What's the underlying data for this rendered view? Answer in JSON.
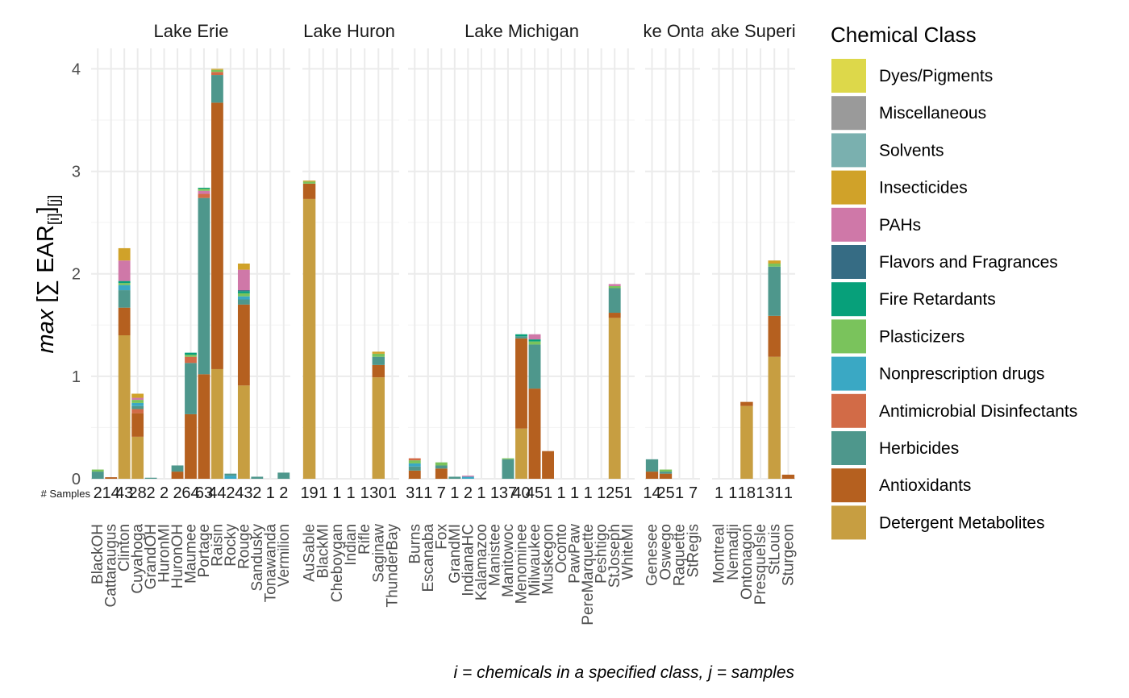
{
  "chart_data": {
    "type": "bar",
    "stacked": true,
    "ylabel": "max [∑ EAR[i]][j]",
    "ylim": [
      0,
      4.2
    ],
    "yticks": [
      0,
      1,
      2,
      3,
      4
    ],
    "grid": true,
    "samples_label": "# Samples",
    "caption": "i = chemicals in a specified class, j = samples",
    "legend_title": "Chemical Class",
    "legend_position": "right",
    "classes": [
      {
        "name": "Dyes/Pigments",
        "color": "#DDD84A"
      },
      {
        "name": "Miscellaneous",
        "color": "#9A9A9A"
      },
      {
        "name": "Solvents",
        "color": "#7AB0AF"
      },
      {
        "name": "Insecticides",
        "color": "#D0A229"
      },
      {
        "name": "PAHs",
        "color": "#CF78A8"
      },
      {
        "name": "Flavors and Fragrances",
        "color": "#366C84"
      },
      {
        "name": "Fire Retardants",
        "color": "#07A07A"
      },
      {
        "name": "Plasticizers",
        "color": "#7AC35C"
      },
      {
        "name": "Nonprescription drugs",
        "color": "#3AA8C4"
      },
      {
        "name": "Antimicrobial Disinfectants",
        "color": "#D26B47"
      },
      {
        "name": "Herbicides",
        "color": "#4E978C"
      },
      {
        "name": "Antioxidants",
        "color": "#B5601F"
      },
      {
        "name": "Detergent Metabolites",
        "color": "#C79E41"
      }
    ],
    "facets": [
      {
        "name": "Lake Erie",
        "title_display": "Lake Erie",
        "sites": [
          {
            "site": "BlackOH",
            "samples": "2",
            "stack": [
              {
                "c": "Herbicides",
                "v": 0.07
              },
              {
                "c": "Plasticizers",
                "v": 0.02
              }
            ]
          },
          {
            "site": "Cattaraugus",
            "samples": "14",
            "stack": [
              {
                "c": "Antioxidants",
                "v": 0.015
              }
            ]
          },
          {
            "site": "Clinton",
            "samples": "43",
            "stack": [
              {
                "c": "Detergent Metabolites",
                "v": 1.4
              },
              {
                "c": "Antioxidants",
                "v": 0.27
              },
              {
                "c": "Herbicides",
                "v": 0.17
              },
              {
                "c": "Nonprescription drugs",
                "v": 0.05
              },
              {
                "c": "Plasticizers",
                "v": 0.02
              },
              {
                "c": "Fire Retardants",
                "v": 0.02
              },
              {
                "c": "PAHs",
                "v": 0.2
              },
              {
                "c": "Insecticides",
                "v": 0.12
              }
            ]
          },
          {
            "site": "Cuyahoga",
            "samples": "28",
            "stack": [
              {
                "c": "Detergent Metabolites",
                "v": 0.41
              },
              {
                "c": "Antioxidants",
                "v": 0.23
              },
              {
                "c": "Antimicrobial Disinfectants",
                "v": 0.04
              },
              {
                "c": "Herbicides",
                "v": 0.03
              },
              {
                "c": "Nonprescription drugs",
                "v": 0.03
              },
              {
                "c": "Plasticizers",
                "v": 0.03
              },
              {
                "c": "PAHs",
                "v": 0.02
              },
              {
                "c": "Insecticides",
                "v": 0.04
              }
            ]
          },
          {
            "site": "GrandOH",
            "samples": "2",
            "stack": [
              {
                "c": "Herbicides",
                "v": 0.01
              }
            ]
          },
          {
            "site": "HuronMI",
            "samples": "2",
            "stack": []
          },
          {
            "site": "HuronOH",
            "samples": "2",
            "stack": [
              {
                "c": "Antioxidants",
                "v": 0.07
              },
              {
                "c": "Herbicides",
                "v": 0.06
              }
            ]
          },
          {
            "site": "Maumee",
            "samples": "64",
            "stack": [
              {
                "c": "Antioxidants",
                "v": 0.63
              },
              {
                "c": "Herbicides",
                "v": 0.5
              },
              {
                "c": "Antimicrobial Disinfectants",
                "v": 0.06
              },
              {
                "c": "Plasticizers",
                "v": 0.02
              },
              {
                "c": "Fire Retardants",
                "v": 0.02
              }
            ]
          },
          {
            "site": "Portage",
            "samples": "63",
            "stack": [
              {
                "c": "Antioxidants",
                "v": 1.02
              },
              {
                "c": "Herbicides",
                "v": 1.72
              },
              {
                "c": "Antimicrobial Disinfectants",
                "v": 0.04
              },
              {
                "c": "PAHs",
                "v": 0.03
              },
              {
                "c": "Plasticizers",
                "v": 0.02
              },
              {
                "c": "Fire Retardants",
                "v": 0.01
              }
            ]
          },
          {
            "site": "Raisin",
            "samples": "44",
            "stack": [
              {
                "c": "Detergent Metabolites",
                "v": 1.07
              },
              {
                "c": "Antioxidants",
                "v": 2.6
              },
              {
                "c": "Herbicides",
                "v": 0.27
              },
              {
                "c": "Antimicrobial Disinfectants",
                "v": 0.03
              },
              {
                "c": "Plasticizers",
                "v": 0.02
              },
              {
                "c": "Insecticides",
                "v": 0.01
              }
            ]
          },
          {
            "site": "Rocky",
            "samples": "2",
            "stack": [
              {
                "c": "Nonprescription drugs",
                "v": 0.03
              },
              {
                "c": "Herbicides",
                "v": 0.02
              }
            ]
          },
          {
            "site": "Rouge",
            "samples": "43",
            "stack": [
              {
                "c": "Detergent Metabolites",
                "v": 0.91
              },
              {
                "c": "Antioxidants",
                "v": 0.79
              },
              {
                "c": "Herbicides",
                "v": 0.05
              },
              {
                "c": "Nonprescription drugs",
                "v": 0.03
              },
              {
                "c": "Plasticizers",
                "v": 0.03
              },
              {
                "c": "Fire Retardants",
                "v": 0.02
              },
              {
                "c": "Flavors and Fragrances",
                "v": 0.01
              },
              {
                "c": "PAHs",
                "v": 0.2
              },
              {
                "c": "Insecticides",
                "v": 0.06
              }
            ]
          },
          {
            "site": "Sandusky",
            "samples": "2",
            "stack": [
              {
                "c": "Herbicides",
                "v": 0.02
              }
            ]
          },
          {
            "site": "Tonawanda",
            "samples": "1",
            "stack": []
          },
          {
            "site": "Vermilion",
            "samples": "2",
            "stack": [
              {
                "c": "Herbicides",
                "v": 0.06
              }
            ]
          }
        ]
      },
      {
        "name": "Lake Huron",
        "title_display": "Lake Huron",
        "sites": [
          {
            "site": "AuSable",
            "samples": "19",
            "stack": [
              {
                "c": "Detergent Metabolites",
                "v": 2.73
              },
              {
                "c": "Antioxidants",
                "v": 0.15
              },
              {
                "c": "Plasticizers",
                "v": 0.02
              },
              {
                "c": "Insecticides",
                "v": 0.01
              }
            ]
          },
          {
            "site": "BlackMI",
            "samples": "1",
            "stack": []
          },
          {
            "site": "Cheboygan",
            "samples": "1",
            "stack": []
          },
          {
            "site": "Indian",
            "samples": "1",
            "stack": []
          },
          {
            "site": "Rifle",
            "samples": "1",
            "stack": []
          },
          {
            "site": "Saginaw",
            "samples": "30",
            "stack": [
              {
                "c": "Detergent Metabolites",
                "v": 0.99
              },
              {
                "c": "Antioxidants",
                "v": 0.12
              },
              {
                "c": "Herbicides",
                "v": 0.08
              },
              {
                "c": "Plasticizers",
                "v": 0.03
              },
              {
                "c": "Insecticides",
                "v": 0.02
              }
            ]
          },
          {
            "site": "ThunderBay",
            "samples": "1",
            "stack": []
          }
        ]
      },
      {
        "name": "Lake Michigan",
        "title_display": "Lake Michigan",
        "sites": [
          {
            "site": "Burns",
            "samples": "31",
            "stack": [
              {
                "c": "Antioxidants",
                "v": 0.08
              },
              {
                "c": "Herbicides",
                "v": 0.04
              },
              {
                "c": "Nonprescription drugs",
                "v": 0.03
              },
              {
                "c": "Plasticizers",
                "v": 0.03
              },
              {
                "c": "Antimicrobial Disinfectants",
                "v": 0.02
              }
            ]
          },
          {
            "site": "Escanaba",
            "samples": "1",
            "stack": []
          },
          {
            "site": "Fox",
            "samples": "7",
            "stack": [
              {
                "c": "Antioxidants",
                "v": 0.1
              },
              {
                "c": "Herbicides",
                "v": 0.03
              },
              {
                "c": "Plasticizers",
                "v": 0.03
              }
            ]
          },
          {
            "site": "GrandMI",
            "samples": "1",
            "stack": [
              {
                "c": "Herbicides",
                "v": 0.02
              }
            ]
          },
          {
            "site": "IndianaHC",
            "samples": "2",
            "stack": [
              {
                "c": "Nonprescription drugs",
                "v": 0.02
              },
              {
                "c": "PAHs",
                "v": 0.01
              }
            ]
          },
          {
            "site": "Kalamazoo",
            "samples": "1",
            "stack": []
          },
          {
            "site": "Manistee",
            "samples": "1",
            "stack": []
          },
          {
            "site": "Manitowoc",
            "samples": "37",
            "stack": [
              {
                "c": "Herbicides",
                "v": 0.19
              },
              {
                "c": "Plasticizers",
                "v": 0.01
              }
            ]
          },
          {
            "site": "Menominee",
            "samples": "40",
            "stack": [
              {
                "c": "Detergent Metabolites",
                "v": 0.49
              },
              {
                "c": "Antioxidants",
                "v": 0.88
              },
              {
                "c": "Herbicides",
                "v": 0.02
              },
              {
                "c": "Fire Retardants",
                "v": 0.02
              }
            ]
          },
          {
            "site": "Milwaukee",
            "samples": "45",
            "stack": [
              {
                "c": "Antioxidants",
                "v": 0.88
              },
              {
                "c": "Herbicides",
                "v": 0.43
              },
              {
                "c": "Plasticizers",
                "v": 0.03
              },
              {
                "c": "Fire Retardants",
                "v": 0.02
              },
              {
                "c": "PAHs",
                "v": 0.05
              }
            ]
          },
          {
            "site": "Muskegon",
            "samples": "1",
            "stack": [
              {
                "c": "Antioxidants",
                "v": 0.27
              }
            ]
          },
          {
            "site": "Oconto",
            "samples": "1",
            "stack": []
          },
          {
            "site": "PawPaw",
            "samples": "1",
            "stack": []
          },
          {
            "site": "PereMarquette",
            "samples": "1",
            "stack": []
          },
          {
            "site": "Peshtigo",
            "samples": "1",
            "stack": []
          },
          {
            "site": "StJoseph",
            "samples": "25",
            "stack": [
              {
                "c": "Detergent Metabolites",
                "v": 1.57
              },
              {
                "c": "Antioxidants",
                "v": 0.05
              },
              {
                "c": "Herbicides",
                "v": 0.24
              },
              {
                "c": "Plasticizers",
                "v": 0.02
              },
              {
                "c": "PAHs",
                "v": 0.02
              }
            ]
          },
          {
            "site": "WhiteMI",
            "samples": "1",
            "stack": []
          }
        ]
      },
      {
        "name": "Lake Ontario",
        "title_display": "ke Onta",
        "sites": [
          {
            "site": "Genesee",
            "samples": "14",
            "stack": [
              {
                "c": "Antioxidants",
                "v": 0.07
              },
              {
                "c": "Herbicides",
                "v": 0.12
              }
            ]
          },
          {
            "site": "Oswego",
            "samples": "25",
            "stack": [
              {
                "c": "Antioxidants",
                "v": 0.05
              },
              {
                "c": "Herbicides",
                "v": 0.02
              },
              {
                "c": "Plasticizers",
                "v": 0.02
              }
            ]
          },
          {
            "site": "Raquette",
            "samples": "1",
            "stack": []
          },
          {
            "site": "StRegis",
            "samples": "7",
            "stack": []
          }
        ]
      },
      {
        "name": "Lake Superior",
        "title_display": "ake Superi",
        "sites": [
          {
            "site": "Montreal",
            "samples": "1",
            "stack": []
          },
          {
            "site": "Nemadji",
            "samples": "1",
            "stack": []
          },
          {
            "site": "Ontonagon",
            "samples": "18",
            "stack": [
              {
                "c": "Detergent Metabolites",
                "v": 0.71
              },
              {
                "c": "Antioxidants",
                "v": 0.04
              }
            ]
          },
          {
            "site": "PresqueIsle",
            "samples": "1",
            "stack": []
          },
          {
            "site": "StLouis",
            "samples": "31",
            "stack": [
              {
                "c": "Detergent Metabolites",
                "v": 1.19
              },
              {
                "c": "Antioxidants",
                "v": 0.4
              },
              {
                "c": "Herbicides",
                "v": 0.48
              },
              {
                "c": "Plasticizers",
                "v": 0.03
              },
              {
                "c": "Insecticides",
                "v": 0.03
              }
            ]
          },
          {
            "site": "Sturgeon",
            "samples": "1",
            "stack": [
              {
                "c": "Antioxidants",
                "v": 0.04
              }
            ]
          }
        ]
      }
    ]
  }
}
